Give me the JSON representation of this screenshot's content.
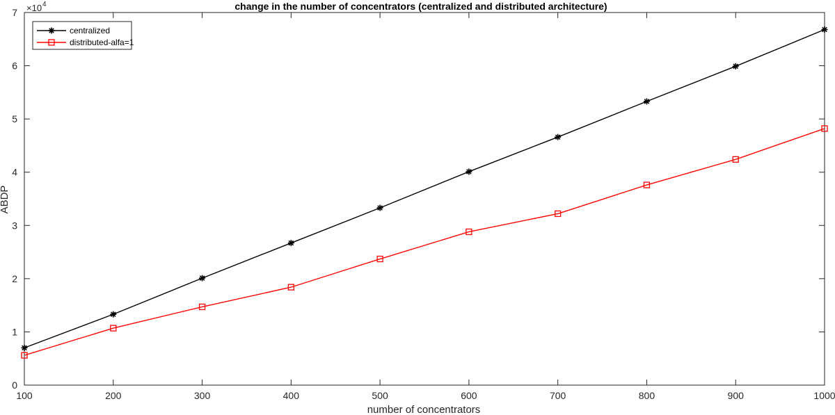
{
  "chart_data": {
    "type": "line",
    "title": "change in the number of concentrators (centralized and distributed architecture)",
    "xlabel": "number of concentrators",
    "ylabel": "ABDP",
    "y_exponent_label": "×10",
    "y_exponent_power": "4",
    "xlim": [
      100,
      1000
    ],
    "ylim": [
      0,
      70000
    ],
    "x_ticks": [
      100,
      200,
      300,
      400,
      500,
      600,
      700,
      800,
      900,
      1000
    ],
    "y_ticks": [
      0,
      10000,
      20000,
      30000,
      40000,
      50000,
      60000,
      70000
    ],
    "y_tick_labels": [
      "0",
      "1",
      "2",
      "3",
      "4",
      "5",
      "6",
      "7"
    ],
    "grid": false,
    "legend_position": "top-left",
    "x": [
      100,
      200,
      300,
      400,
      500,
      600,
      700,
      800,
      900,
      1000
    ],
    "series": [
      {
        "name": "centralized",
        "color": "#000000",
        "marker": "asterisk",
        "values": [
          7000,
          13300,
          20100,
          26700,
          33300,
          40100,
          46600,
          53300,
          59900,
          66800
        ]
      },
      {
        "name": "distributed-alfa=1",
        "color": "#ff0000",
        "marker": "square",
        "values": [
          5600,
          10700,
          14700,
          18400,
          23700,
          28800,
          32200,
          37600,
          42400,
          48200
        ]
      }
    ]
  }
}
